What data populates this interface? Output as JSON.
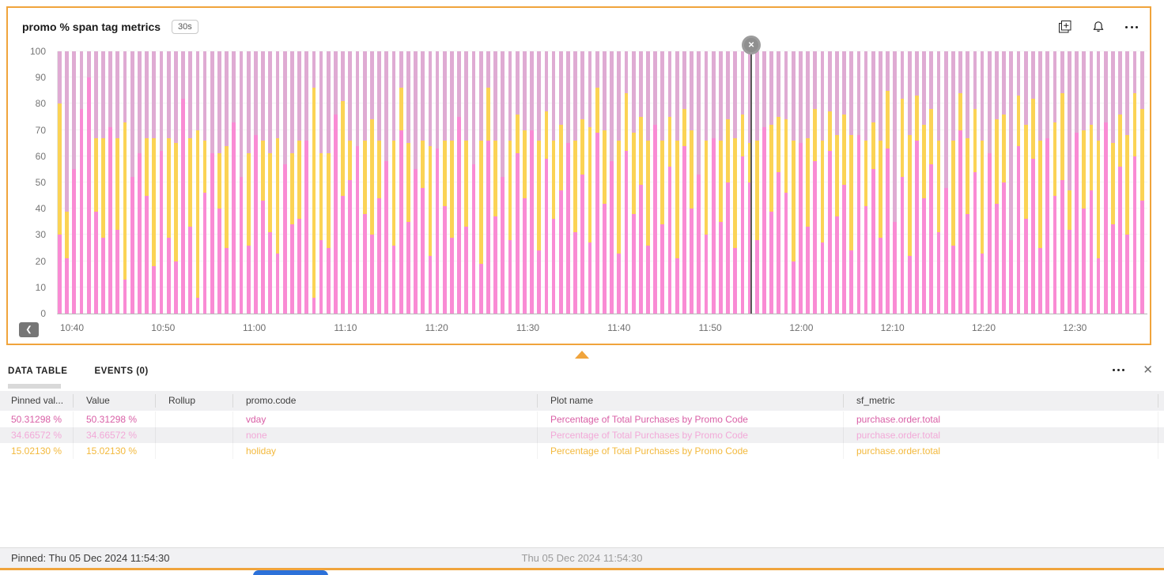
{
  "panel": {
    "title": "promo % span tag metrics",
    "resolution_badge": "30s"
  },
  "chart_data": {
    "type": "bar",
    "stacked": true,
    "title": "promo % span tag metrics",
    "ylabel": "",
    "xlabel": "",
    "ylim": [
      0,
      100
    ],
    "grid": "faint-horizontal",
    "y_ticks": [
      0,
      10,
      20,
      30,
      40,
      50,
      60,
      70,
      80,
      90,
      100
    ],
    "x_ticks": [
      "10:40",
      "10:50",
      "11:00",
      "11:10",
      "11:20",
      "11:30",
      "11:40",
      "11:50",
      "12:00",
      "12:10",
      "12:20",
      "12:30"
    ],
    "x_tick_start_pct": 1.38,
    "x_tick_step_pct": 8.367,
    "series": [
      {
        "name": "vday",
        "color": "#F98BD4",
        "position": "bottom",
        "values": [
          30,
          21,
          55,
          78,
          90,
          39,
          29,
          71,
          32,
          13,
          52,
          61,
          45,
          18,
          62,
          29,
          20,
          82,
          33,
          6,
          46,
          61,
          40,
          25,
          73,
          52,
          26,
          68,
          43,
          31,
          23,
          57,
          34,
          36,
          66,
          6,
          28,
          25,
          76,
          45,
          51,
          64,
          38,
          30,
          44,
          58,
          26,
          70,
          35,
          55,
          48,
          22,
          63,
          41,
          29,
          75,
          33,
          57,
          19,
          66,
          37,
          52,
          28,
          61,
          44,
          70,
          24,
          59,
          36,
          47,
          65,
          31,
          53,
          27,
          69,
          42,
          58,
          23,
          62,
          38,
          49,
          26,
          72,
          34,
          56,
          21,
          64,
          40,
          53,
          30,
          67,
          35,
          50,
          25,
          60,
          50,
          28,
          71,
          39,
          54,
          46,
          20,
          65,
          33,
          58,
          27,
          62,
          37,
          49,
          24,
          68,
          41,
          55,
          29,
          63,
          35,
          52,
          22,
          66,
          44,
          57,
          31,
          48,
          26,
          70,
          38,
          54,
          23,
          61,
          42,
          50,
          28,
          64,
          36,
          59,
          25,
          67,
          45,
          51,
          32,
          69,
          40,
          47,
          21,
          73,
          34,
          56,
          30,
          60,
          43
        ]
      },
      {
        "name": "holiday",
        "color": "#FBD355",
        "position": "middle",
        "values": [
          50,
          18,
          0,
          0,
          0,
          28,
          38,
          0,
          35,
          60,
          0,
          0,
          22,
          49,
          0,
          38,
          45,
          0,
          34,
          64,
          20,
          0,
          21,
          39,
          0,
          0,
          35,
          0,
          23,
          30,
          44,
          0,
          27,
          30,
          0,
          80,
          33,
          36,
          0,
          36,
          15,
          0,
          28,
          44,
          22,
          0,
          40,
          16,
          30,
          0,
          18,
          42,
          0,
          25,
          37,
          0,
          33,
          0,
          47,
          20,
          29,
          0,
          38,
          15,
          26,
          0,
          42,
          18,
          30,
          25,
          0,
          35,
          21,
          44,
          17,
          28,
          0,
          43,
          22,
          31,
          26,
          40,
          0,
          32,
          19,
          45,
          14,
          30,
          0,
          36,
          0,
          31,
          24,
          42,
          16,
          15,
          38,
          0,
          33,
          21,
          28,
          46,
          0,
          34,
          20,
          39,
          15,
          31,
          27,
          44,
          0,
          25,
          18,
          37,
          22,
          0,
          30,
          46,
          17,
          28,
          21,
          35,
          0,
          40,
          14,
          29,
          24,
          43,
          0,
          32,
          26,
          0,
          19,
          36,
          23,
          41,
          0,
          28,
          33,
          15,
          0,
          30,
          25,
          45,
          0,
          31,
          20,
          38,
          24,
          35
        ]
      },
      {
        "name": "none",
        "color": "#DFABD3",
        "position": "top",
        "values_rule": "remainder_to_100"
      }
    ],
    "pinned": {
      "x_pct": 63.65,
      "time_label": "Thu 05 Dec 2024 11:54:30",
      "values": {
        "vday": 50.31298,
        "none": 34.66572,
        "holiday": 15.0213
      }
    }
  },
  "table_section": {
    "tabs": [
      {
        "label": "DATA TABLE",
        "active": true
      },
      {
        "label": "EVENTS (0)",
        "active": false
      }
    ]
  },
  "table": {
    "columns": [
      "Pinned val...",
      "Value",
      "Rollup",
      "promo.code",
      "Plot name",
      "sf_metric"
    ],
    "rows": [
      {
        "color": "#D95FA6",
        "shaded": false,
        "cells": [
          "50.31298 %",
          "50.31298 %",
          "",
          "vday",
          "Percentage of Total Purchases by Promo Code",
          "purchase.order.total"
        ]
      },
      {
        "color": "#F2A9D8",
        "shaded": true,
        "cells": [
          "34.66572 %",
          "34.66572 %",
          "",
          "none",
          "Percentage of Total Purchases by Promo Code",
          "purchase.order.total"
        ]
      },
      {
        "color": "#F3B93D",
        "shaded": false,
        "cells": [
          "15.02130 %",
          "15.02130 %",
          "",
          "holiday",
          "Percentage of Total Purchases by Promo Code",
          "purchase.order.total"
        ]
      }
    ]
  },
  "status_bar": {
    "pinned_label": "Pinned: Thu 05 Dec 2024 11:54:30",
    "cursor_label": "Thu 05 Dec 2024 11:54:30"
  },
  "icons": {
    "unpin_glyph": "✕",
    "close_glyph": "✕",
    "scroll_left_glyph": "❮"
  },
  "colors": {
    "panel_border": "#F0A43C",
    "accent_orange": "#F0A43C",
    "blue_button": "#2C71D9"
  }
}
